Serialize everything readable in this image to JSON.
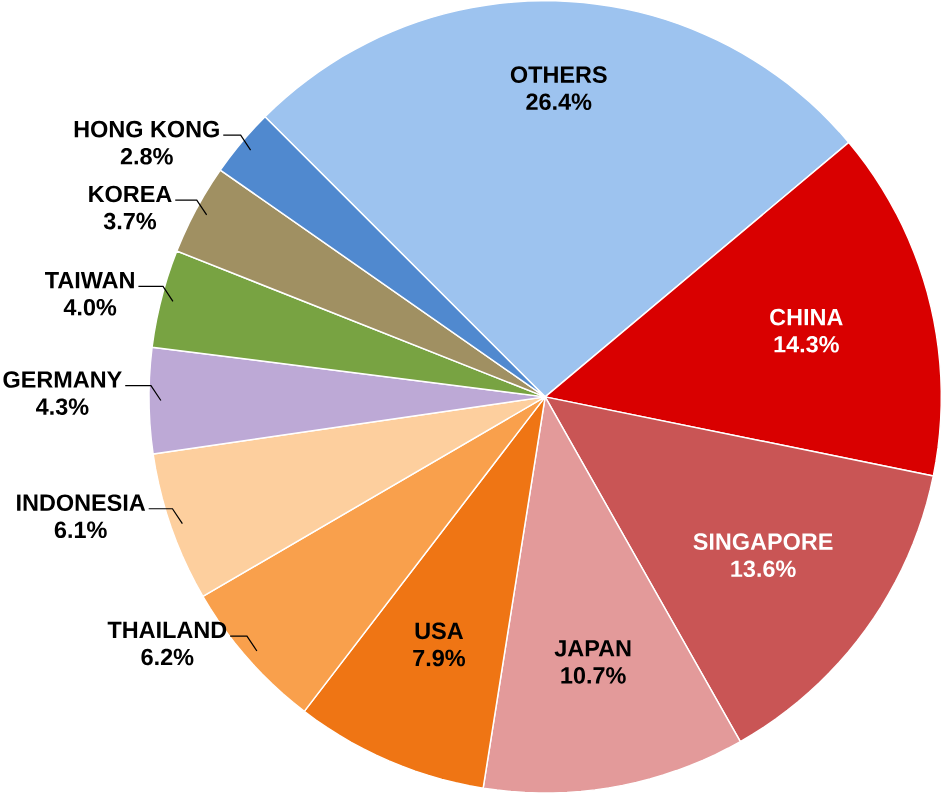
{
  "chart_data": {
    "type": "pie",
    "categories": [
      "OTHERS",
      "CHINA",
      "SINGAPORE",
      "JAPAN",
      "USA",
      "THAILAND",
      "INDONESIA",
      "GERMANY",
      "TAIWAN",
      "KOREA",
      "HONG KONG"
    ],
    "values": [
      26.4,
      14.3,
      13.6,
      10.7,
      7.9,
      6.2,
      6.1,
      4.3,
      4.0,
      3.7,
      2.8
    ],
    "value_labels": [
      "26.4%",
      "14.3%",
      "13.6%",
      "10.7%",
      "7.9%",
      "6.2%",
      "6.1%",
      "4.3%",
      "4.0%",
      "3.7%",
      "2.8%"
    ],
    "colors": [
      "#9dc3ef",
      "#d90000",
      "#c95555",
      "#e39a9a",
      "#ef7514",
      "#f9a04c",
      "#fdcf9e",
      "#bda9d6",
      "#78a342",
      "#a09062",
      "#5089cf"
    ]
  }
}
